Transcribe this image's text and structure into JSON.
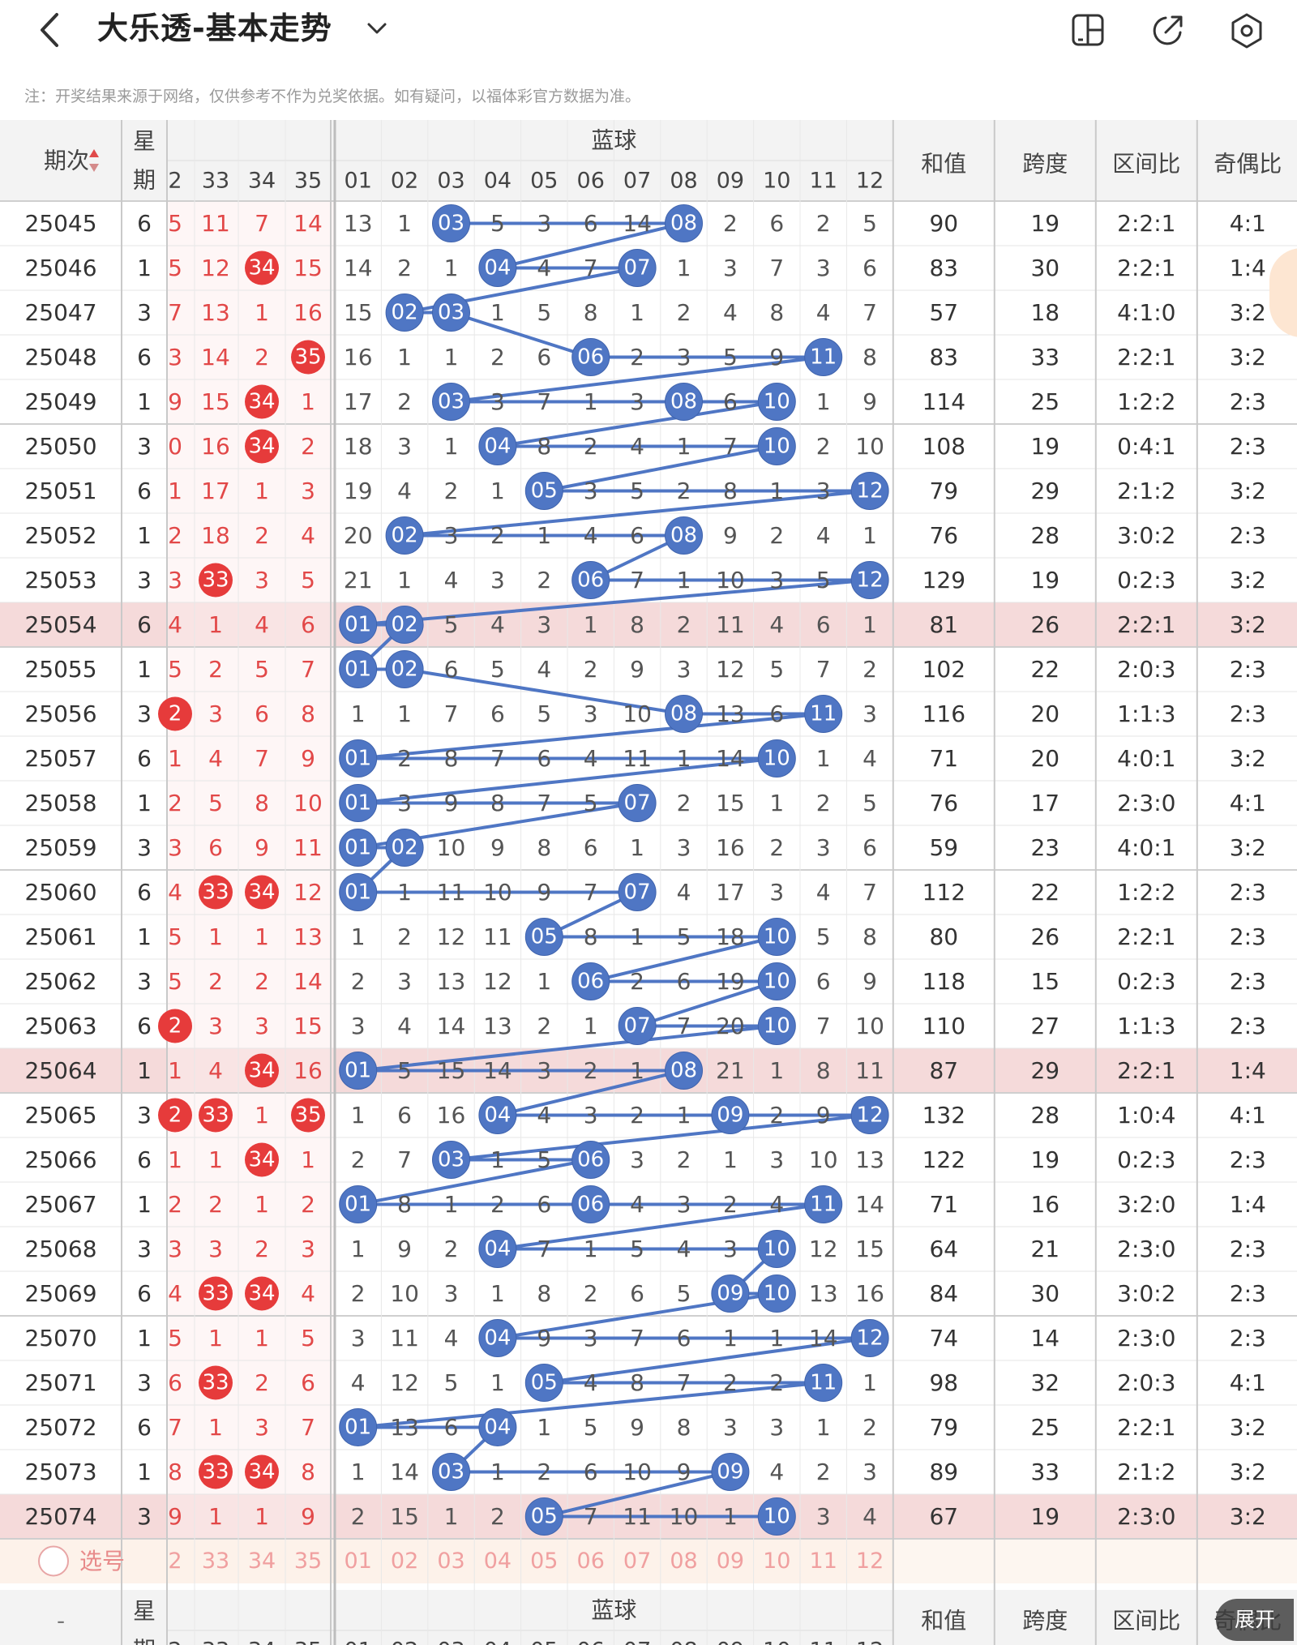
{
  "header": {
    "title": "大乐透-基本走势",
    "notice": "注：开奖结果来源于网络，仅供参考不作为兑奖依据。如有疑问，以福体彩官方数据为准。"
  },
  "icons": {
    "back": "chevron-left-icon",
    "dropdown": "chevron-down-icon",
    "split": "split-screen-icon",
    "share": "share-icon",
    "settings": "settings-icon"
  },
  "colors": {
    "red_ball": "#e63b3b",
    "blue_ball": "#4f76c4",
    "highlight_row": "#f5dada",
    "selector_row": "#fdf2ea",
    "blue_text": "#555555",
    "red_text": "#e24848"
  },
  "table": {
    "col_headers": {
      "period": "期次",
      "weekday": "星期",
      "blue_section": "蓝球",
      "sum": "和值",
      "span": "跨度",
      "zone": "区间比",
      "parity": "奇偶比"
    },
    "front_cols": [
      "2",
      "33",
      "34",
      "35"
    ],
    "blue_cols": [
      "01",
      "02",
      "03",
      "04",
      "05",
      "06",
      "07",
      "08",
      "09",
      "10",
      "11",
      "12"
    ],
    "selector_label": "选号",
    "selector_front": [
      "2",
      "33",
      "34",
      "35"
    ],
    "footer_period": "-",
    "expand_label": "展开",
    "rows": [
      {
        "period": "25045",
        "weekday": "6",
        "front": [
          [
            "5",
            0
          ],
          [
            "11",
            0
          ],
          [
            "7",
            0
          ],
          [
            "14",
            0
          ]
        ],
        "blue": [
          "13",
          "1",
          "03",
          "5",
          "3",
          "6",
          "14",
          "08",
          "2",
          "6",
          "2",
          "5"
        ],
        "sum": "90",
        "span": "19",
        "zone": "2:2:1",
        "parity": "4:1"
      },
      {
        "period": "25046",
        "weekday": "1",
        "front": [
          [
            "5",
            0
          ],
          [
            "12",
            0
          ],
          [
            "34",
            1
          ],
          [
            "15",
            0
          ]
        ],
        "blue": [
          "14",
          "2",
          "1",
          "04",
          "4",
          "7",
          "07",
          "1",
          "3",
          "7",
          "3",
          "6"
        ],
        "sum": "83",
        "span": "30",
        "zone": "2:2:1",
        "parity": "1:4"
      },
      {
        "period": "25047",
        "weekday": "3",
        "front": [
          [
            "7",
            0
          ],
          [
            "13",
            0
          ],
          [
            "1",
            0
          ],
          [
            "16",
            0
          ]
        ],
        "blue": [
          "15",
          "02",
          "03",
          "1",
          "5",
          "8",
          "1",
          "2",
          "4",
          "8",
          "4",
          "7"
        ],
        "sum": "57",
        "span": "18",
        "zone": "4:1:0",
        "parity": "3:2"
      },
      {
        "period": "25048",
        "weekday": "6",
        "front": [
          [
            "3",
            0
          ],
          [
            "14",
            0
          ],
          [
            "2",
            0
          ],
          [
            "35",
            1
          ]
        ],
        "blue": [
          "16",
          "1",
          "1",
          "2",
          "6",
          "06",
          "2",
          "3",
          "5",
          "9",
          "11",
          "8"
        ],
        "sum": "83",
        "span": "33",
        "zone": "2:2:1",
        "parity": "3:2"
      },
      {
        "period": "25049",
        "weekday": "1",
        "front": [
          [
            "9",
            0
          ],
          [
            "15",
            0
          ],
          [
            "34",
            1
          ],
          [
            "1",
            0
          ]
        ],
        "blue": [
          "17",
          "2",
          "03",
          "3",
          "7",
          "1",
          "3",
          "08",
          "6",
          "10",
          "1",
          "9"
        ],
        "sum": "114",
        "span": "25",
        "zone": "1:2:2",
        "parity": "2:3"
      },
      {
        "period": "25050",
        "weekday": "3",
        "front": [
          [
            "0",
            0
          ],
          [
            "16",
            0
          ],
          [
            "34",
            1
          ],
          [
            "2",
            0
          ]
        ],
        "blue": [
          "18",
          "3",
          "1",
          "04",
          "8",
          "2",
          "4",
          "1",
          "7",
          "10",
          "2",
          "10"
        ],
        "sum": "108",
        "span": "19",
        "zone": "0:4:1",
        "parity": "2:3"
      },
      {
        "period": "25051",
        "weekday": "6",
        "front": [
          [
            "1",
            0
          ],
          [
            "17",
            0
          ],
          [
            "1",
            0
          ],
          [
            "3",
            0
          ]
        ],
        "blue": [
          "19",
          "4",
          "2",
          "1",
          "05",
          "3",
          "5",
          "2",
          "8",
          "1",
          "3",
          "12"
        ],
        "sum": "79",
        "span": "29",
        "zone": "2:1:2",
        "parity": "3:2"
      },
      {
        "period": "25052",
        "weekday": "1",
        "front": [
          [
            "2",
            0
          ],
          [
            "18",
            0
          ],
          [
            "2",
            0
          ],
          [
            "4",
            0
          ]
        ],
        "blue": [
          "20",
          "02",
          "3",
          "2",
          "1",
          "4",
          "6",
          "08",
          "9",
          "2",
          "4",
          "1"
        ],
        "sum": "76",
        "span": "28",
        "zone": "3:0:2",
        "parity": "2:3"
      },
      {
        "period": "25053",
        "weekday": "3",
        "front": [
          [
            "3",
            0
          ],
          [
            "33",
            1
          ],
          [
            "3",
            0
          ],
          [
            "5",
            0
          ]
        ],
        "blue": [
          "21",
          "1",
          "4",
          "3",
          "2",
          "06",
          "7",
          "1",
          "10",
          "3",
          "5",
          "12"
        ],
        "sum": "129",
        "span": "19",
        "zone": "0:2:3",
        "parity": "3:2"
      },
      {
        "period": "25054",
        "weekday": "6",
        "front": [
          [
            "4",
            0
          ],
          [
            "1",
            0
          ],
          [
            "4",
            0
          ],
          [
            "6",
            0
          ]
        ],
        "blue": [
          "01",
          "02",
          "5",
          "4",
          "3",
          "1",
          "8",
          "2",
          "11",
          "4",
          "6",
          "1"
        ],
        "sum": "81",
        "span": "26",
        "zone": "2:2:1",
        "parity": "3:2",
        "highlight": true
      },
      {
        "period": "25055",
        "weekday": "1",
        "front": [
          [
            "5",
            0
          ],
          [
            "2",
            0
          ],
          [
            "5",
            0
          ],
          [
            "7",
            0
          ]
        ],
        "blue": [
          "01",
          "02",
          "6",
          "5",
          "4",
          "2",
          "9",
          "3",
          "12",
          "5",
          "7",
          "2"
        ],
        "sum": "102",
        "span": "22",
        "zone": "2:0:3",
        "parity": "2:3"
      },
      {
        "period": "25056",
        "weekday": "3",
        "front": [
          [
            "2",
            1
          ],
          [
            "3",
            0
          ],
          [
            "6",
            0
          ],
          [
            "8",
            0
          ]
        ],
        "blue": [
          "1",
          "1",
          "7",
          "6",
          "5",
          "3",
          "10",
          "08",
          "13",
          "6",
          "11",
          "3"
        ],
        "sum": "116",
        "span": "20",
        "zone": "1:1:3",
        "parity": "2:3"
      },
      {
        "period": "25057",
        "weekday": "6",
        "front": [
          [
            "1",
            0
          ],
          [
            "4",
            0
          ],
          [
            "7",
            0
          ],
          [
            "9",
            0
          ]
        ],
        "blue": [
          "01",
          "2",
          "8",
          "7",
          "6",
          "4",
          "11",
          "1",
          "14",
          "10",
          "1",
          "4"
        ],
        "sum": "71",
        "span": "20",
        "zone": "4:0:1",
        "parity": "3:2"
      },
      {
        "period": "25058",
        "weekday": "1",
        "front": [
          [
            "2",
            0
          ],
          [
            "5",
            0
          ],
          [
            "8",
            0
          ],
          [
            "10",
            0
          ]
        ],
        "blue": [
          "01",
          "3",
          "9",
          "8",
          "7",
          "5",
          "07",
          "2",
          "15",
          "1",
          "2",
          "5"
        ],
        "sum": "76",
        "span": "17",
        "zone": "2:3:0",
        "parity": "4:1"
      },
      {
        "period": "25059",
        "weekday": "3",
        "front": [
          [
            "3",
            0
          ],
          [
            "6",
            0
          ],
          [
            "9",
            0
          ],
          [
            "11",
            0
          ]
        ],
        "blue": [
          "01",
          "02",
          "10",
          "9",
          "8",
          "6",
          "1",
          "3",
          "16",
          "2",
          "3",
          "6"
        ],
        "sum": "59",
        "span": "23",
        "zone": "4:0:1",
        "parity": "3:2"
      },
      {
        "period": "25060",
        "weekday": "6",
        "front": [
          [
            "4",
            0
          ],
          [
            "33",
            1
          ],
          [
            "34",
            1
          ],
          [
            "12",
            0
          ]
        ],
        "blue": [
          "01",
          "1",
          "11",
          "10",
          "9",
          "7",
          "07",
          "4",
          "17",
          "3",
          "4",
          "7"
        ],
        "sum": "112",
        "span": "22",
        "zone": "1:2:2",
        "parity": "2:3"
      },
      {
        "period": "25061",
        "weekday": "1",
        "front": [
          [
            "5",
            0
          ],
          [
            "1",
            0
          ],
          [
            "1",
            0
          ],
          [
            "13",
            0
          ]
        ],
        "blue": [
          "1",
          "2",
          "12",
          "11",
          "05",
          "8",
          "1",
          "5",
          "18",
          "10",
          "5",
          "8"
        ],
        "sum": "80",
        "span": "26",
        "zone": "2:2:1",
        "parity": "2:3"
      },
      {
        "period": "25062",
        "weekday": "3",
        "front": [
          [
            "5",
            0
          ],
          [
            "2",
            0
          ],
          [
            "2",
            0
          ],
          [
            "14",
            0
          ]
        ],
        "blue": [
          "2",
          "3",
          "13",
          "12",
          "1",
          "06",
          "2",
          "6",
          "19",
          "10",
          "6",
          "9"
        ],
        "sum": "118",
        "span": "15",
        "zone": "0:2:3",
        "parity": "2:3"
      },
      {
        "period": "25063",
        "weekday": "6",
        "front": [
          [
            "2",
            1
          ],
          [
            "3",
            0
          ],
          [
            "3",
            0
          ],
          [
            "15",
            0
          ]
        ],
        "blue": [
          "3",
          "4",
          "14",
          "13",
          "2",
          "1",
          "07",
          "7",
          "20",
          "10",
          "7",
          "10"
        ],
        "sum": "110",
        "span": "27",
        "zone": "1:1:3",
        "parity": "2:3"
      },
      {
        "period": "25064",
        "weekday": "1",
        "front": [
          [
            "1",
            0
          ],
          [
            "4",
            0
          ],
          [
            "34",
            1
          ],
          [
            "16",
            0
          ]
        ],
        "blue": [
          "01",
          "5",
          "15",
          "14",
          "3",
          "2",
          "1",
          "08",
          "21",
          "1",
          "8",
          "11"
        ],
        "sum": "87",
        "span": "29",
        "zone": "2:2:1",
        "parity": "1:4",
        "highlight": true
      },
      {
        "period": "25065",
        "weekday": "3",
        "front": [
          [
            "2",
            1
          ],
          [
            "33",
            1
          ],
          [
            "1",
            0
          ],
          [
            "35",
            1
          ]
        ],
        "blue": [
          "1",
          "6",
          "16",
          "04",
          "4",
          "3",
          "2",
          "1",
          "09",
          "2",
          "9",
          "12"
        ],
        "sum": "132",
        "span": "28",
        "zone": "1:0:4",
        "parity": "4:1"
      },
      {
        "period": "25066",
        "weekday": "6",
        "front": [
          [
            "1",
            0
          ],
          [
            "1",
            0
          ],
          [
            "34",
            1
          ],
          [
            "1",
            0
          ]
        ],
        "blue": [
          "2",
          "7",
          "03",
          "1",
          "5",
          "06",
          "3",
          "2",
          "1",
          "3",
          "10",
          "13"
        ],
        "sum": "122",
        "span": "19",
        "zone": "0:2:3",
        "parity": "2:3"
      },
      {
        "period": "25067",
        "weekday": "1",
        "front": [
          [
            "2",
            0
          ],
          [
            "2",
            0
          ],
          [
            "1",
            0
          ],
          [
            "2",
            0
          ]
        ],
        "blue": [
          "01",
          "8",
          "1",
          "2",
          "6",
          "06",
          "4",
          "3",
          "2",
          "4",
          "11",
          "14"
        ],
        "sum": "71",
        "span": "16",
        "zone": "3:2:0",
        "parity": "1:4"
      },
      {
        "period": "25068",
        "weekday": "3",
        "front": [
          [
            "3",
            0
          ],
          [
            "3",
            0
          ],
          [
            "2",
            0
          ],
          [
            "3",
            0
          ]
        ],
        "blue": [
          "1",
          "9",
          "2",
          "04",
          "7",
          "1",
          "5",
          "4",
          "3",
          "10",
          "12",
          "15"
        ],
        "sum": "64",
        "span": "21",
        "zone": "2:3:0",
        "parity": "2:3"
      },
      {
        "period": "25069",
        "weekday": "6",
        "front": [
          [
            "4",
            0
          ],
          [
            "33",
            1
          ],
          [
            "34",
            1
          ],
          [
            "4",
            0
          ]
        ],
        "blue": [
          "2",
          "10",
          "3",
          "1",
          "8",
          "2",
          "6",
          "5",
          "09",
          "10",
          "13",
          "16"
        ],
        "sum": "84",
        "span": "30",
        "zone": "3:0:2",
        "parity": "2:3"
      },
      {
        "period": "25070",
        "weekday": "1",
        "front": [
          [
            "5",
            0
          ],
          [
            "1",
            0
          ],
          [
            "1",
            0
          ],
          [
            "5",
            0
          ]
        ],
        "blue": [
          "3",
          "11",
          "4",
          "04",
          "9",
          "3",
          "7",
          "6",
          "1",
          "1",
          "14",
          "12"
        ],
        "sum": "74",
        "span": "14",
        "zone": "2:3:0",
        "parity": "2:3"
      },
      {
        "period": "25071",
        "weekday": "3",
        "front": [
          [
            "6",
            0
          ],
          [
            "33",
            1
          ],
          [
            "2",
            0
          ],
          [
            "6",
            0
          ]
        ],
        "blue": [
          "4",
          "12",
          "5",
          "1",
          "05",
          "4",
          "8",
          "7",
          "2",
          "2",
          "11",
          "1"
        ],
        "sum": "98",
        "span": "32",
        "zone": "2:0:3",
        "parity": "4:1"
      },
      {
        "period": "25072",
        "weekday": "6",
        "front": [
          [
            "7",
            0
          ],
          [
            "1",
            0
          ],
          [
            "3",
            0
          ],
          [
            "7",
            0
          ]
        ],
        "blue": [
          "01",
          "13",
          "6",
          "04",
          "1",
          "5",
          "9",
          "8",
          "3",
          "3",
          "1",
          "2"
        ],
        "sum": "79",
        "span": "25",
        "zone": "2:2:1",
        "parity": "3:2"
      },
      {
        "period": "25073",
        "weekday": "1",
        "front": [
          [
            "8",
            0
          ],
          [
            "33",
            1
          ],
          [
            "34",
            1
          ],
          [
            "8",
            0
          ]
        ],
        "blue": [
          "1",
          "14",
          "03",
          "1",
          "2",
          "6",
          "10",
          "9",
          "09",
          "4",
          "2",
          "3"
        ],
        "sum": "89",
        "span": "33",
        "zone": "2:1:2",
        "parity": "3:2"
      },
      {
        "period": "25074",
        "weekday": "3",
        "front": [
          [
            "9",
            0
          ],
          [
            "1",
            0
          ],
          [
            "1",
            0
          ],
          [
            "9",
            0
          ]
        ],
        "blue": [
          "2",
          "15",
          "1",
          "2",
          "05",
          "7",
          "11",
          "10",
          "1",
          "10",
          "3",
          "4"
        ],
        "sum": "67",
        "span": "19",
        "zone": "2:3:0",
        "parity": "3:2",
        "highlight": true
      }
    ]
  }
}
